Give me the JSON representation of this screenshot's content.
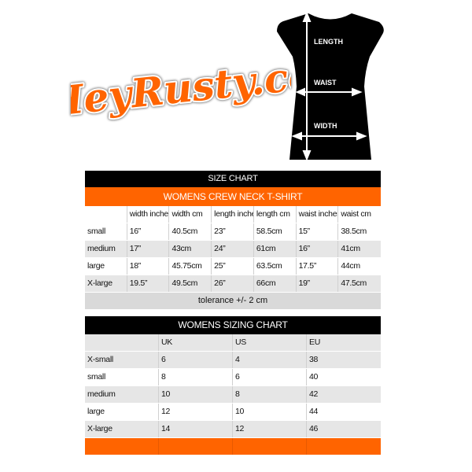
{
  "logo": {
    "text": "HeyRusty.co",
    "color": "#ff6400"
  },
  "shirt": {
    "labels": {
      "length": "LENGTH",
      "waist": "WAIST",
      "width": "WIDTH"
    }
  },
  "size_chart": {
    "title": "SIZE CHART",
    "subtitle": "WOMENS CREW NECK T-SHIRT",
    "columns": [
      "",
      "width inches",
      "width cm",
      "length inches",
      "length cm",
      "waist inches",
      "waist cm"
    ],
    "rows": [
      [
        "small",
        "16”",
        "40.5cm",
        "23”",
        "58.5cm",
        "15”",
        "38.5cm"
      ],
      [
        "medium",
        "17”",
        "43cm",
        "24”",
        "61cm",
        "16”",
        "41cm"
      ],
      [
        "large",
        "18”",
        "45.75cm",
        "25”",
        "63.5cm",
        "17.5”",
        "44cm"
      ],
      [
        "X-large",
        "19.5”",
        "49.5cm",
        "26”",
        "66cm",
        "19”",
        "47.5cm"
      ]
    ],
    "footer": "tolerance +/- 2 cm"
  },
  "sizing_chart": {
    "title": "WOMENS SIZING CHART",
    "columns": [
      "",
      "UK",
      "US",
      "EU"
    ],
    "rows": [
      [
        "X-small",
        "6",
        "4",
        "38"
      ],
      [
        "small",
        "8",
        "6",
        "40"
      ],
      [
        "medium",
        "10",
        "8",
        "42"
      ],
      [
        "large",
        "12",
        "10",
        "44"
      ],
      [
        "X-large",
        "14",
        "12",
        "46"
      ]
    ]
  },
  "colors": {
    "accent": "#ff6400",
    "header": "#000000",
    "stripe": "#e6e6e6"
  }
}
